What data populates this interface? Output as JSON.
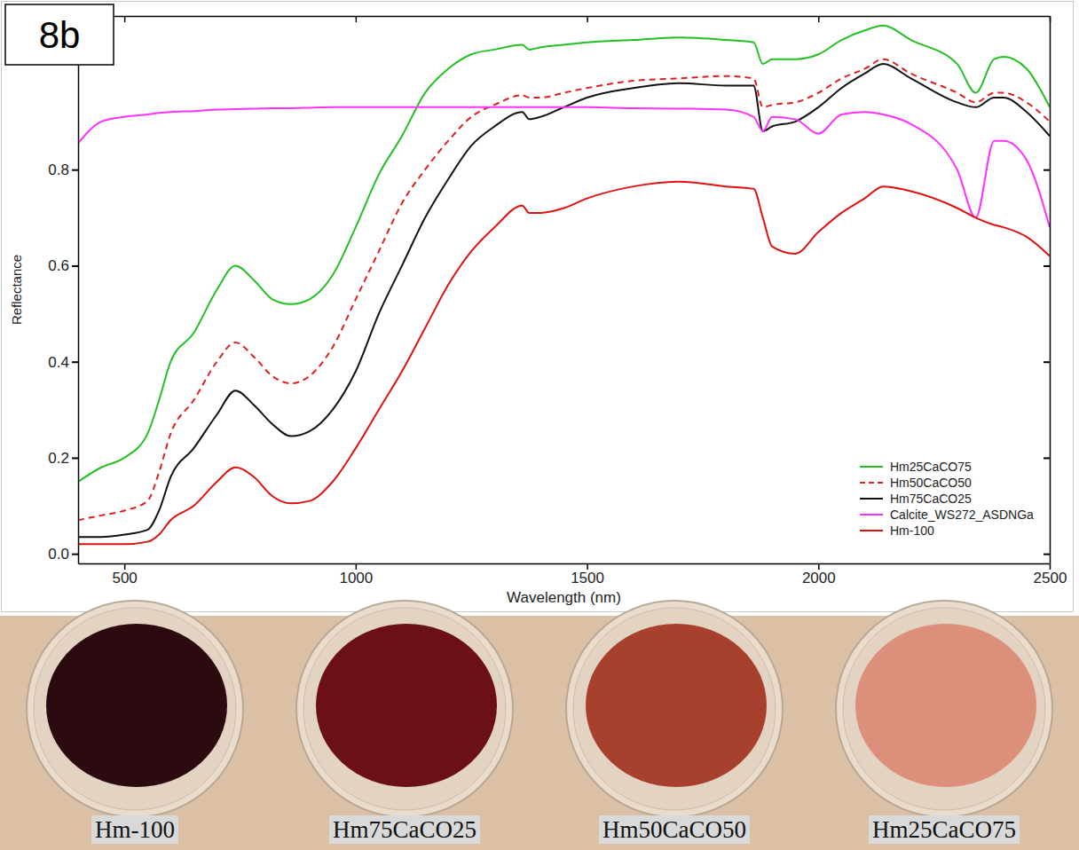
{
  "chart_data": {
    "type": "line",
    "annotations": [
      "8b"
    ],
    "x_label": "Wavelength (nm)",
    "y_label": "Reflectance",
    "x": [
      400,
      450,
      500,
      550,
      575,
      600,
      650,
      700,
      740,
      780,
      820,
      860,
      900,
      950,
      1000,
      1050,
      1100,
      1150,
      1200,
      1250,
      1300,
      1360,
      1375,
      1400,
      1450,
      1500,
      1600,
      1700,
      1800,
      1860,
      1880,
      1900,
      1950,
      2000,
      2050,
      2100,
      2140,
      2200,
      2300,
      2340,
      2380,
      2400,
      2450,
      2500
    ],
    "series": [
      {
        "name": "Hm25CaCO75",
        "color": "#22c022",
        "line_style": "solid",
        "values": [
          0.15,
          0.18,
          0.2,
          0.25,
          0.32,
          0.4,
          0.46,
          0.55,
          0.6,
          0.57,
          0.53,
          0.52,
          0.53,
          0.58,
          0.68,
          0.79,
          0.87,
          0.96,
          1.01,
          1.04,
          1.05,
          1.06,
          1.05,
          1.055,
          1.06,
          1.065,
          1.07,
          1.075,
          1.07,
          1.065,
          1.02,
          1.03,
          1.03,
          1.04,
          1.07,
          1.09,
          1.1,
          1.07,
          1.02,
          0.96,
          1.03,
          1.035,
          1.01,
          0.93
        ]
      },
      {
        "name": "Hm50CaCO50",
        "color": "#e02020",
        "line_style": "dashed",
        "values": [
          0.07,
          0.08,
          0.09,
          0.11,
          0.17,
          0.25,
          0.32,
          0.4,
          0.44,
          0.41,
          0.37,
          0.355,
          0.37,
          0.43,
          0.53,
          0.63,
          0.73,
          0.8,
          0.86,
          0.91,
          0.935,
          0.955,
          0.95,
          0.95,
          0.96,
          0.97,
          0.985,
          0.99,
          0.995,
          0.99,
          0.93,
          0.935,
          0.94,
          0.96,
          0.99,
          1.01,
          1.03,
          1.0,
          0.96,
          0.94,
          0.96,
          0.96,
          0.94,
          0.9
        ]
      },
      {
        "name": "Hm75CaCO25",
        "color": "#111111",
        "line_style": "solid",
        "values": [
          0.035,
          0.035,
          0.04,
          0.05,
          0.09,
          0.16,
          0.22,
          0.29,
          0.34,
          0.31,
          0.27,
          0.245,
          0.255,
          0.3,
          0.38,
          0.5,
          0.6,
          0.7,
          0.78,
          0.85,
          0.89,
          0.92,
          0.905,
          0.91,
          0.93,
          0.95,
          0.97,
          0.98,
          0.975,
          0.975,
          0.88,
          0.89,
          0.9,
          0.93,
          0.97,
          1.0,
          1.02,
          0.99,
          0.94,
          0.93,
          0.95,
          0.95,
          0.92,
          0.87
        ]
      },
      {
        "name": "Calcite_WS272_ASDNGa",
        "color": "#ff30ff",
        "line_style": "solid",
        "values": [
          0.855,
          0.9,
          0.91,
          0.915,
          0.918,
          0.92,
          0.922,
          0.925,
          0.926,
          0.927,
          0.928,
          0.928,
          0.929,
          0.93,
          0.93,
          0.93,
          0.93,
          0.93,
          0.93,
          0.93,
          0.93,
          0.93,
          0.93,
          0.93,
          0.93,
          0.93,
          0.928,
          0.927,
          0.925,
          0.91,
          0.88,
          0.91,
          0.905,
          0.875,
          0.915,
          0.92,
          0.915,
          0.895,
          0.8,
          0.7,
          0.86,
          0.86,
          0.82,
          0.68
        ]
      },
      {
        "name": "Hm-100",
        "color": "#e01010",
        "line_style": "solid",
        "values": [
          0.02,
          0.02,
          0.02,
          0.025,
          0.04,
          0.07,
          0.1,
          0.15,
          0.18,
          0.16,
          0.12,
          0.105,
          0.11,
          0.15,
          0.22,
          0.3,
          0.38,
          0.47,
          0.56,
          0.63,
          0.68,
          0.725,
          0.71,
          0.71,
          0.72,
          0.74,
          0.765,
          0.775,
          0.765,
          0.76,
          0.7,
          0.64,
          0.625,
          0.67,
          0.71,
          0.74,
          0.765,
          0.755,
          0.72,
          0.7,
          0.685,
          0.68,
          0.66,
          0.62
        ]
      }
    ],
    "xlim": [
      400,
      2500
    ],
    "xticks": [
      500,
      1000,
      1500,
      2000,
      2500
    ],
    "ylim": [
      -0.02,
      1.12
    ],
    "yticks": [
      {
        "value": 0,
        "label": "0.0"
      },
      0.2,
      0.4,
      0.6,
      0.8
    ],
    "grid": false,
    "legend": "lower right"
  },
  "photo": {
    "samples": [
      {
        "label": "Hm-100",
        "color": "#2b0a10"
      },
      {
        "label": "Hm75CaCO25",
        "color": "#6a1016"
      },
      {
        "label": "Hm50CaCO50",
        "color": "#a8402e"
      },
      {
        "label": "Hm25CaCO75",
        "color": "#dc8f7a"
      }
    ]
  }
}
